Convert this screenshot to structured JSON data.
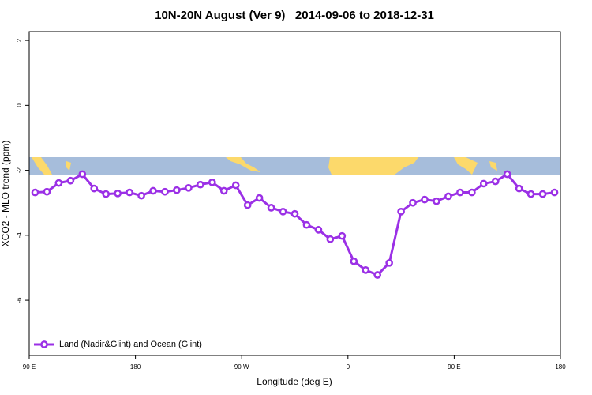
{
  "chart_data": {
    "type": "line",
    "title": "10N-20N August (Ver 9)   2014-09-06 to 2018-12-31",
    "x_label": "Longitude (deg E)",
    "y_label": "XCO2 - MLO trend (ppm)",
    "x": [
      95,
      105,
      115,
      125,
      135,
      145,
      155,
      165,
      175,
      185,
      195,
      205,
      215,
      225,
      235,
      245,
      255,
      265,
      275,
      285,
      295,
      305,
      315,
      325,
      335,
      345,
      355,
      365,
      375,
      385,
      395,
      405,
      415,
      425,
      435,
      445,
      455,
      465,
      475,
      485,
      495,
      505,
      515,
      525,
      535
    ],
    "series": [
      {
        "name": "Land (Nadir&Glint) and Ocean (Glint)",
        "color": "#9b30e6",
        "values": [
          -2.68,
          -2.66,
          -2.39,
          -2.32,
          -2.12,
          -2.56,
          -2.73,
          -2.71,
          -2.68,
          -2.78,
          -2.63,
          -2.66,
          -2.61,
          -2.54,
          -2.44,
          -2.37,
          -2.63,
          -2.46,
          -3.07,
          -2.85,
          -3.15,
          -3.27,
          -3.34,
          -3.68,
          -3.83,
          -4.12,
          -4.02,
          -4.8,
          -5.07,
          -5.22,
          -4.85,
          -3.27,
          -3.0,
          -2.9,
          -2.95,
          -2.8,
          -2.68,
          -2.68,
          -2.41,
          -2.34,
          -2.12,
          -2.56,
          -2.73,
          -2.73,
          -2.68
        ]
      }
    ],
    "xlim": [
      90,
      540
    ],
    "xticks": [
      {
        "value": 90,
        "label": "90 E"
      },
      {
        "value": 180,
        "label": "180"
      },
      {
        "value": 270,
        "label": "90 W"
      },
      {
        "value": 360,
        "label": "0"
      },
      {
        "value": 450,
        "label": "90 E"
      },
      {
        "value": 540,
        "label": "180"
      }
    ],
    "ylim": [
      -7.7,
      2.27
    ],
    "yticks": [
      -6,
      -4,
      -2,
      0,
      2
    ],
    "legend": "bottom-left"
  }
}
